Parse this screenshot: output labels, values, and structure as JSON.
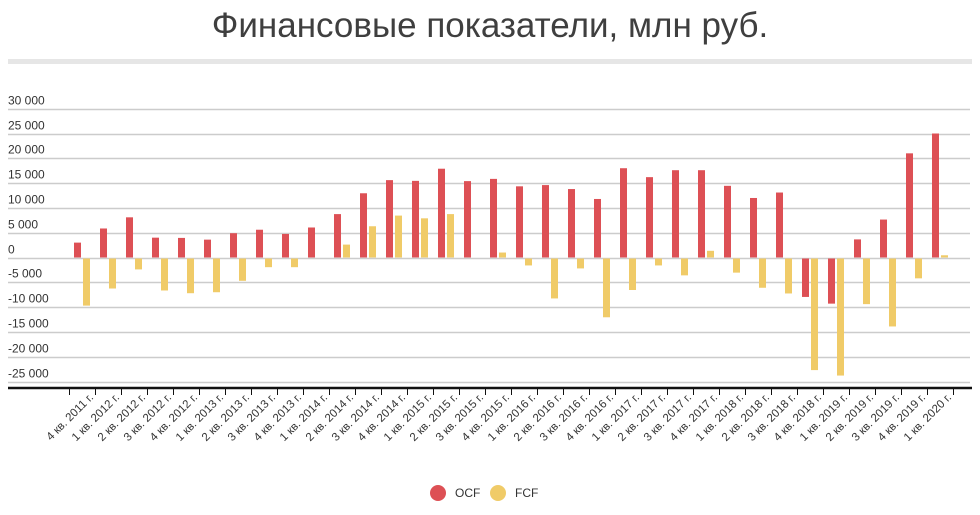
{
  "title": "Финансовые показатели, млн руб.",
  "colors": {
    "ocf": "#dd5055",
    "fcf": "#f0cb68",
    "grid": "#cccccc",
    "axis": "#111111",
    "text": "#333333"
  },
  "legend": [
    {
      "label": "OCF",
      "color": "#dd5055"
    },
    {
      "label": "FCF",
      "color": "#f0cb68"
    }
  ],
  "chart_data": {
    "type": "bar",
    "title": "Финансовые показатели, млн руб.",
    "xlabel": "",
    "ylabel": "",
    "ylim": [
      -25000,
      30000
    ],
    "yticks": [
      30000,
      25000,
      20000,
      15000,
      10000,
      5000,
      0,
      -5000,
      -10000,
      -15000,
      -20000,
      -25000
    ],
    "ytick_labels": [
      "30 000",
      "25 000",
      "20 000",
      "15 000",
      "10 000",
      "5 000",
      "0",
      "-5 000",
      "-10 000",
      "-15 000",
      "-20 000",
      "-25 000"
    ],
    "grid": true,
    "legend_position": "bottom",
    "categories": [
      "4 кв. 2011 г.",
      "1 кв. 2012 г.",
      "2 кв. 2012 г.",
      "3 кв. 2012 г.",
      "4 кв. 2012 г.",
      "1 кв. 2013 г.",
      "2 кв. 2013 г.",
      "3 кв. 2013 г.",
      "4 кв. 2013 г.",
      "1 кв. 2014 г.",
      "2 кв. 2014 г.",
      "3 кв. 2014 г.",
      "4 кв. 2014 г.",
      "1 кв. 2015 г.",
      "2 кв. 2015 г.",
      "3 кв. 2015 г.",
      "4 кв. 2015 г.",
      "1 кв. 2016 г.",
      "2 кв. 2016 г.",
      "3 кв. 2016 г.",
      "4 кв. 2016 г.",
      "1 кв. 2017 г.",
      "2 кв. 2017 г.",
      "3 кв. 2017 г.",
      "4 кв. 2017 г.",
      "1 кв. 2018 г.",
      "2 кв. 2018 г.",
      "3 кв. 2018 г.",
      "4 кв. 2018 г.",
      "1 кв. 2019 г.",
      "2 кв. 2019 г.",
      "3 кв. 2019 г.",
      "4 кв. 2019 г.",
      "1 кв. 2020 г."
    ],
    "series": [
      {
        "name": "OCF",
        "color": "#dd5055",
        "values": [
          3000,
          5850,
          8100,
          4000,
          3950,
          3600,
          4900,
          5600,
          4750,
          6050,
          8750,
          12950,
          15600,
          15450,
          17900,
          15400,
          15850,
          14350,
          14600,
          13800,
          11800,
          18000,
          16200,
          17600,
          17600,
          14450,
          12000,
          13100,
          -7750,
          -9100,
          3650,
          7650,
          21000,
          25000
        ]
      },
      {
        "name": "FCF",
        "color": "#f0cb68",
        "values": [
          -9500,
          -6050,
          -2200,
          -6450,
          -7000,
          -6800,
          -4500,
          -1750,
          -1750,
          0,
          2600,
          6300,
          8450,
          7900,
          8750,
          0,
          1000,
          -1400,
          -8050,
          -2000,
          -11850,
          -6350,
          -1400,
          -3400,
          1350,
          -2850,
          -5900,
          -7050,
          -22500,
          -23600,
          -9200,
          -13700,
          -4000,
          450
        ]
      }
    ]
  }
}
